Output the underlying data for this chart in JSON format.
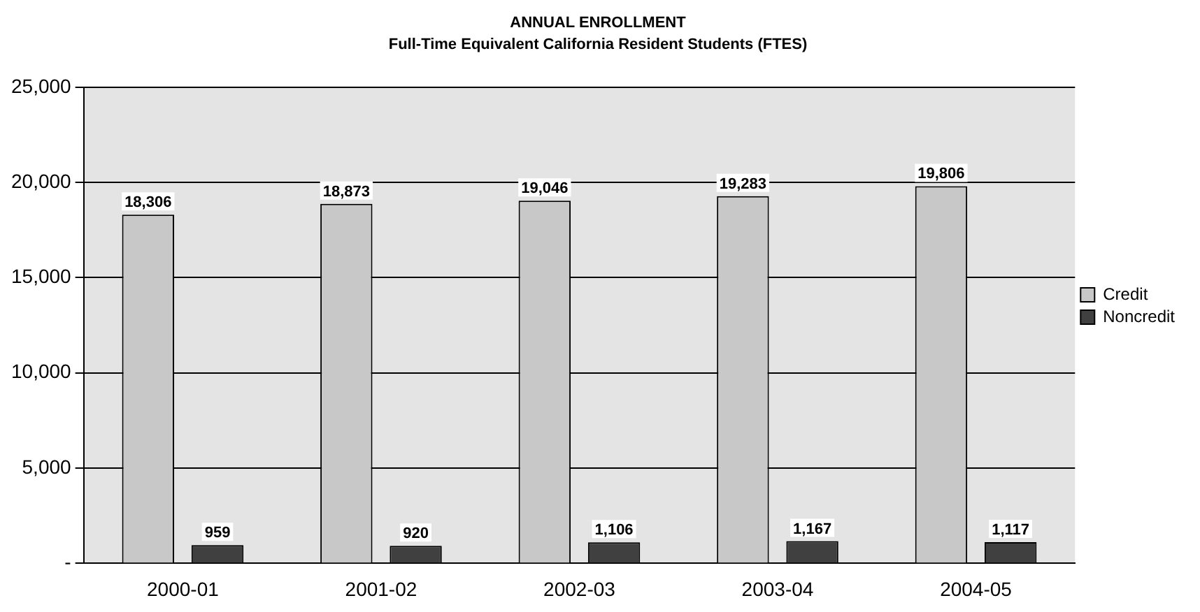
{
  "chart_data": {
    "type": "bar",
    "title": "ANNUAL ENROLLMENT",
    "subtitle": "Full-Time Equivalent California Resident Students (FTES)",
    "categories": [
      "2000-01",
      "2001-02",
      "2002-03",
      "2003-04",
      "2004-05"
    ],
    "series": [
      {
        "name": "Credit",
        "color": "#c8c8c8",
        "values": [
          18306,
          18873,
          19046,
          19283,
          19806
        ],
        "value_labels": [
          "18,306",
          "18,873",
          "19,046",
          "19,283",
          "19,806"
        ]
      },
      {
        "name": "Noncredit",
        "color": "#404040",
        "values": [
          959,
          920,
          1106,
          1167,
          1117
        ],
        "value_labels": [
          "959",
          "920",
          "1,106",
          "1,167",
          "1,117"
        ]
      }
    ],
    "ylim": [
      0,
      25000
    ],
    "yticks": [
      {
        "value": 0,
        "label": "-"
      },
      {
        "value": 5000,
        "label": "5,000"
      },
      {
        "value": 10000,
        "label": "10,000"
      },
      {
        "value": 15000,
        "label": "15,000"
      },
      {
        "value": 20000,
        "label": "20,000"
      },
      {
        "value": 25000,
        "label": "25,000"
      }
    ],
    "grid": "y",
    "legend": "right"
  }
}
